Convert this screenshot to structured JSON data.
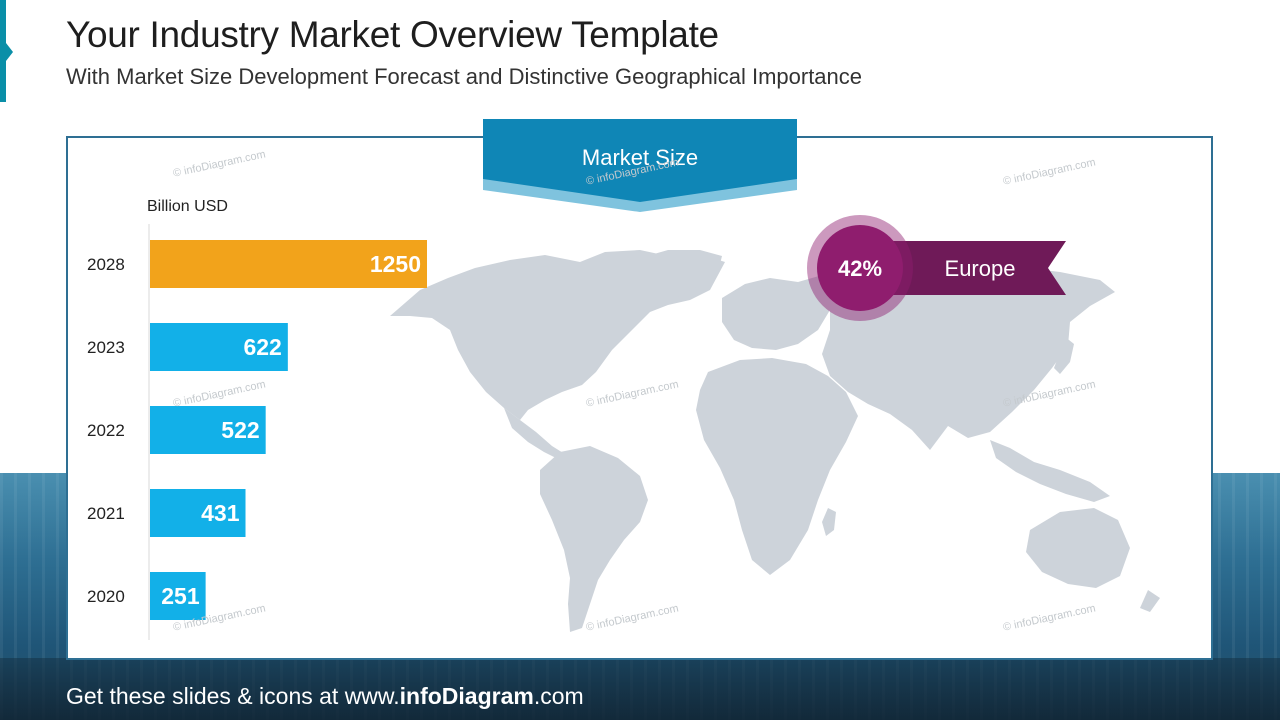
{
  "slide": {
    "title": "Your Industry Market Overview Template",
    "subtitle": "With Market Size Development Forecast and Distinctive Geographical Importance",
    "footer_prefix": "Get these slides & icons at www.",
    "footer_brand": "infoDiagram",
    "footer_suffix": ".com",
    "watermark": "© infoDiagram.com"
  },
  "banner": {
    "label": "Market Size"
  },
  "highlight": {
    "percent": "42%",
    "region": "Europe"
  },
  "colors": {
    "bar_default": "#12b0e8",
    "bar_highlight": "#f2a31b",
    "banner": "#0f86b6",
    "banner_light": "#7fc3de",
    "map": "#cdd3da",
    "circle": "#8f1d6e",
    "ribbon": "#6f1a58",
    "panel_border": "#2e6f93"
  },
  "chart_data": {
    "type": "bar",
    "orientation": "horizontal",
    "ylabel": "Billion USD",
    "categories": [
      "2028",
      "2023",
      "2022",
      "2021",
      "2020"
    ],
    "values": [
      1250,
      622,
      522,
      431,
      251
    ],
    "highlighted_category": "2028",
    "xlim": [
      0,
      1250
    ],
    "grid": false,
    "legend": "none"
  }
}
